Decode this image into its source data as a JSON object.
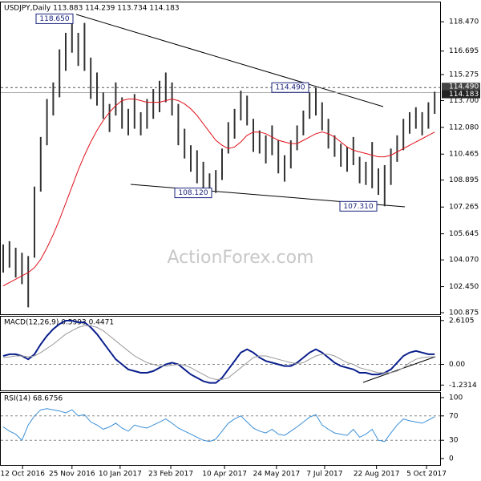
{
  "chart_data": [
    {
      "type": "ohlc",
      "title": "USDJPY,Daily  113.883 114.239 113.734 114.183",
      "watermark": "ActionForex.com",
      "high": [
        105.0,
        105.2,
        104.8,
        104.5,
        104.3,
        108.5,
        111.5,
        113.8,
        114.8,
        116.8,
        117.8,
        118.65,
        117.8,
        118.4,
        116.3,
        115.4,
        114.2,
        113.5,
        114.8,
        113.9,
        113.2,
        114.1,
        113.0,
        113.8,
        114.4,
        114.9,
        115.4,
        114.8,
        113.5,
        112.0,
        111.0,
        110.7,
        110.0,
        109.3,
        109.5,
        110.8,
        112.4,
        113.2,
        114.3,
        114.0,
        112.6,
        111.9,
        111.6,
        112.2,
        111.3,
        110.4,
        111.3,
        112.2,
        113.1,
        114.2,
        114.49,
        113.6,
        112.6,
        111.6,
        111.1,
        110.9,
        111.5,
        110.3,
        110.0,
        111.2,
        109.6,
        109.8,
        110.8,
        111.6,
        112.6,
        113.0,
        113.3,
        113.0,
        113.6,
        114.24
      ],
      "low": [
        103.3,
        103.6,
        103.0,
        102.6,
        101.2,
        104.2,
        108.2,
        111.0,
        112.8,
        113.9,
        115.5,
        116.6,
        115.8,
        115.5,
        113.8,
        113.4,
        112.6,
        111.8,
        112.8,
        112.0,
        111.6,
        112.0,
        111.6,
        112.0,
        112.6,
        113.0,
        113.6,
        112.8,
        111.0,
        110.2,
        109.4,
        108.7,
        108.3,
        108.4,
        108.12,
        108.9,
        110.5,
        111.4,
        112.5,
        112.2,
        110.6,
        110.5,
        109.9,
        110.4,
        109.3,
        108.8,
        109.6,
        110.7,
        111.6,
        112.6,
        112.8,
        111.9,
        110.8,
        110.3,
        109.7,
        109.4,
        109.8,
        108.7,
        108.6,
        108.4,
        108.0,
        107.31,
        108.6,
        110.0,
        110.7,
        111.7,
        112.0,
        111.6,
        112.0,
        112.9
      ],
      "bar_color": "#333333",
      "ma": {
        "color": "#e0101a",
        "values": [
          102.5,
          102.7,
          102.9,
          103.1,
          103.3,
          103.6,
          104.1,
          104.8,
          105.6,
          106.5,
          107.5,
          108.5,
          109.5,
          110.4,
          111.2,
          111.9,
          112.5,
          113.0,
          113.4,
          113.7,
          113.8,
          113.8,
          113.7,
          113.6,
          113.6,
          113.6,
          113.7,
          113.8,
          113.7,
          113.5,
          113.2,
          112.8,
          112.3,
          111.8,
          111.3,
          111.0,
          110.8,
          110.9,
          111.2,
          111.6,
          111.8,
          111.8,
          111.7,
          111.5,
          111.3,
          111.2,
          111.1,
          111.1,
          111.3,
          111.5,
          111.7,
          111.8,
          111.7,
          111.5,
          111.2,
          110.9,
          110.7,
          110.6,
          110.5,
          110.4,
          110.3,
          110.3,
          110.4,
          110.6,
          110.8,
          111.0,
          111.2,
          111.4,
          111.6,
          111.8
        ]
      },
      "ylim": [
        100.78,
        119.64
      ],
      "yticks": [
        {
          "value": 118.47,
          "label": "118.470"
        },
        {
          "value": 116.695,
          "label": "116.695"
        },
        {
          "value": 115.275,
          "label": "115.275"
        },
        {
          "value": 113.7,
          "label": "113.700"
        },
        {
          "value": 112.08,
          "label": "112.080"
        },
        {
          "value": 110.465,
          "label": "110.465"
        },
        {
          "value": 108.895,
          "label": "108.895"
        },
        {
          "value": 107.265,
          "label": "107.265"
        },
        {
          "value": 105.645,
          "label": "105.645"
        },
        {
          "value": 104.07,
          "label": "104.070"
        },
        {
          "value": 102.45,
          "label": "102.450"
        },
        {
          "value": 100.875,
          "label": "100.875"
        }
      ],
      "price_markers": [
        {
          "value": 114.49,
          "label": "114.490"
        },
        {
          "value": 114.183,
          "label": "114.183"
        }
      ],
      "annotations": [
        {
          "value": 118.65,
          "label": "118.650"
        },
        {
          "value": 114.49,
          "label": "114.490"
        },
        {
          "value": 108.12,
          "label": "108.120"
        },
        {
          "value": 107.31,
          "label": "107.310"
        }
      ]
    },
    {
      "type": "line",
      "title": "MACD(12,26,9) 0.5993 0.4471",
      "series": [
        {
          "color": "#0a1e8c",
          "values": [
            0.5,
            0.6,
            0.6,
            0.5,
            0.3,
            0.6,
            1.2,
            1.7,
            2.1,
            2.4,
            2.6,
            2.6,
            2.5,
            2.5,
            2.2,
            1.8,
            1.3,
            0.8,
            0.3,
            0.0,
            -0.3,
            -0.4,
            -0.5,
            -0.5,
            -0.4,
            -0.2,
            0.0,
            0.1,
            0.0,
            -0.3,
            -0.6,
            -0.8,
            -1.0,
            -1.1,
            -1.1,
            -0.8,
            -0.3,
            0.2,
            0.7,
            0.9,
            0.7,
            0.4,
            0.2,
            0.1,
            0.0,
            -0.1,
            -0.1,
            0.1,
            0.4,
            0.7,
            0.9,
            0.7,
            0.4,
            0.1,
            -0.1,
            -0.2,
            -0.3,
            -0.5,
            -0.5,
            -0.6,
            -0.6,
            -0.5,
            -0.3,
            0.1,
            0.5,
            0.7,
            0.8,
            0.7,
            0.6,
            0.6
          ]
        },
        {
          "color": "#999999",
          "values": [
            0.4,
            0.45,
            0.5,
            0.5,
            0.45,
            0.5,
            0.7,
            0.95,
            1.2,
            1.5,
            1.8,
            2.0,
            2.2,
            2.3,
            2.3,
            2.2,
            2.0,
            1.7,
            1.4,
            1.1,
            0.8,
            0.5,
            0.3,
            0.1,
            0.0,
            -0.1,
            -0.1,
            -0.05,
            0.0,
            -0.05,
            -0.2,
            -0.4,
            -0.6,
            -0.8,
            -0.9,
            -0.9,
            -0.8,
            -0.5,
            -0.2,
            0.1,
            0.4,
            0.5,
            0.5,
            0.4,
            0.3,
            0.2,
            0.1,
            0.05,
            0.1,
            0.3,
            0.5,
            0.6,
            0.6,
            0.5,
            0.3,
            0.1,
            0.0,
            -0.2,
            -0.3,
            -0.4,
            -0.5,
            -0.5,
            -0.5,
            -0.4,
            -0.2,
            0.1,
            0.3,
            0.4,
            0.45,
            0.45
          ]
        }
      ],
      "ylim": [
        -1.55,
        2.84
      ],
      "yticks": [
        2.6105,
        {
          "value": 0,
          "label": "0.00"
        },
        -1.2314
      ]
    },
    {
      "type": "line",
      "title": "RSI(14) 68.6756",
      "series": [
        {
          "color": "#3a8fd8",
          "values": [
            52,
            45,
            40,
            30,
            55,
            70,
            80,
            82,
            80,
            78,
            75,
            80,
            70,
            72,
            60,
            55,
            48,
            52,
            58,
            50,
            45,
            55,
            52,
            50,
            55,
            60,
            65,
            58,
            50,
            45,
            40,
            35,
            30,
            28,
            32,
            45,
            58,
            65,
            70,
            60,
            50,
            45,
            42,
            48,
            40,
            38,
            45,
            52,
            60,
            68,
            72,
            55,
            48,
            42,
            40,
            38,
            48,
            35,
            40,
            48,
            30,
            28,
            42,
            55,
            65,
            62,
            60,
            58,
            63,
            68.7
          ]
        }
      ],
      "ylim": [
        0,
        100
      ],
      "yticks": [
        100,
        70,
        30,
        0
      ],
      "xticks": [
        {
          "value": 3.1,
          "label": "12 Oct 2016"
        },
        {
          "value": 11,
          "label": "25 Nov 2016"
        },
        {
          "value": 18.7,
          "label": "10 Jan 2017"
        },
        {
          "value": 26.8,
          "label": "23 Feb 2017"
        },
        {
          "value": 35.4,
          "label": "10 Apr 2017"
        },
        {
          "value": 43.7,
          "label": "24 May 2017"
        },
        {
          "value": 51.4,
          "label": "7 Jul 2017"
        },
        {
          "value": 59.7,
          "label": "22 Aug 2017"
        },
        {
          "value": 67.7,
          "label": "5 Oct 2017"
        }
      ]
    }
  ]
}
